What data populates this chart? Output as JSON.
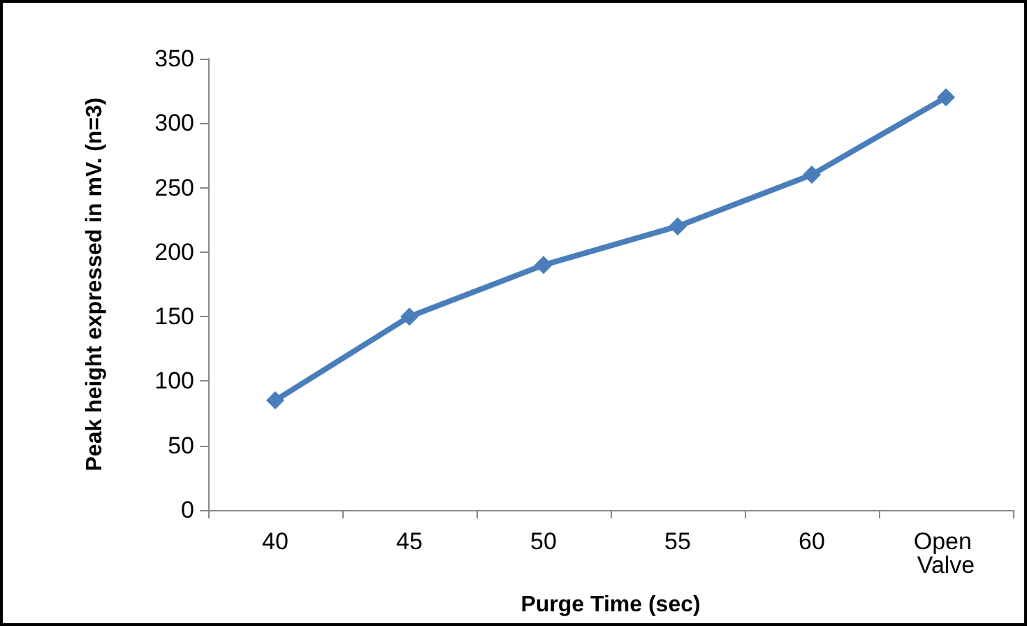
{
  "chart_data": {
    "type": "line",
    "xlabel": "Purge Time (sec)",
    "ylabel": "Peak height expressed in mV. (n=3)",
    "categories": [
      "40",
      "45",
      "50",
      "55",
      "60",
      "Open Valve"
    ],
    "series": [
      {
        "color": "#4a7ebb",
        "values": [
          85,
          150,
          190,
          220,
          260,
          320
        ]
      }
    ],
    "ylim": [
      0,
      350
    ],
    "yticks": [
      0,
      50,
      100,
      150,
      200,
      250,
      300,
      350
    ],
    "grid": false,
    "marker": "diamond",
    "line_style": "solid"
  }
}
